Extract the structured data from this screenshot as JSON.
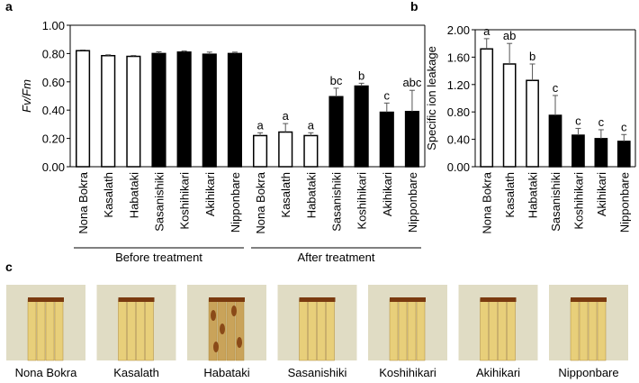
{
  "chart_data": [
    {
      "type": "bar",
      "panel_label": "a",
      "ylabel": "Fv/Fm",
      "categories": [
        "Nona Bokra",
        "Kasalath",
        "Habataki",
        "Sasanishiki",
        "Koshihikari",
        "Akihikari",
        "Nipponbare",
        "Nona Bokra",
        "Kasalath",
        "Habataki",
        "Sasanishiki",
        "Koshihikari",
        "Akihikari",
        "Nipponbare"
      ],
      "values": [
        0.82,
        0.785,
        0.78,
        0.8,
        0.81,
        0.795,
        0.8,
        0.22,
        0.245,
        0.22,
        0.495,
        0.57,
        0.385,
        0.39
      ],
      "errors": [
        0.005,
        0.006,
        0.006,
        0.012,
        0.008,
        0.015,
        0.01,
        0.02,
        0.06,
        0.02,
        0.06,
        0.02,
        0.065,
        0.15
      ],
      "annotations": [
        null,
        null,
        null,
        null,
        null,
        null,
        null,
        "a",
        "a",
        "a",
        "bc",
        "b",
        "c",
        "abc"
      ],
      "colors": [
        "#ffffff",
        "#ffffff",
        "#ffffff",
        "#000000",
        "#000000",
        "#000000",
        "#000000",
        "#ffffff",
        "#ffffff",
        "#ffffff",
        "#000000",
        "#000000",
        "#000000",
        "#000000"
      ],
      "group_labels": [
        "Before treatment",
        "After treatment"
      ],
      "ylim": [
        0,
        1.0
      ],
      "yticks": [
        {
          "value": 0,
          "label": "0.00"
        },
        {
          "value": 0.2,
          "label": "0.20"
        },
        {
          "value": 0.4,
          "label": "0.40"
        },
        {
          "value": 0.6,
          "label": "0.60"
        },
        {
          "value": 0.8,
          "label": "0.80"
        },
        {
          "value": 1.0,
          "label": "1.00"
        }
      ]
    },
    {
      "type": "bar",
      "panel_label": "b",
      "ylabel": "Specific ion leakage",
      "categories": [
        "Nona Bokra",
        "Kasalath",
        "Habataki",
        "Sasanishiki",
        "Koshihikari",
        "Akihikari",
        "Nipponbare"
      ],
      "values": [
        1.72,
        1.5,
        1.26,
        0.75,
        0.46,
        0.41,
        0.37
      ],
      "errors": [
        0.15,
        0.3,
        0.24,
        0.29,
        0.1,
        0.13,
        0.1
      ],
      "annotations": [
        "a",
        "ab",
        "b",
        "c",
        "c",
        "c",
        "c"
      ],
      "colors": [
        "#ffffff",
        "#ffffff",
        "#ffffff",
        "#000000",
        "#000000",
        "#000000",
        "#000000"
      ],
      "ylim": [
        0,
        2.0
      ],
      "yticks": [
        {
          "value": 0,
          "label": "0.00"
        },
        {
          "value": 0.4,
          "label": "0.40"
        },
        {
          "value": 0.8,
          "label": "0.80"
        },
        {
          "value": 1.2,
          "label": "1.20"
        },
        {
          "value": 1.6,
          "label": "1.60"
        },
        {
          "value": 2.0,
          "label": "2.00"
        }
      ]
    }
  ],
  "panel_c": {
    "panel_label": "c",
    "captions": [
      "Nona Bokra",
      "Kasalath",
      "Habataki",
      "Sasanishiki",
      "Koshihikari",
      "Akihikari",
      "Nipponbare"
    ]
  }
}
